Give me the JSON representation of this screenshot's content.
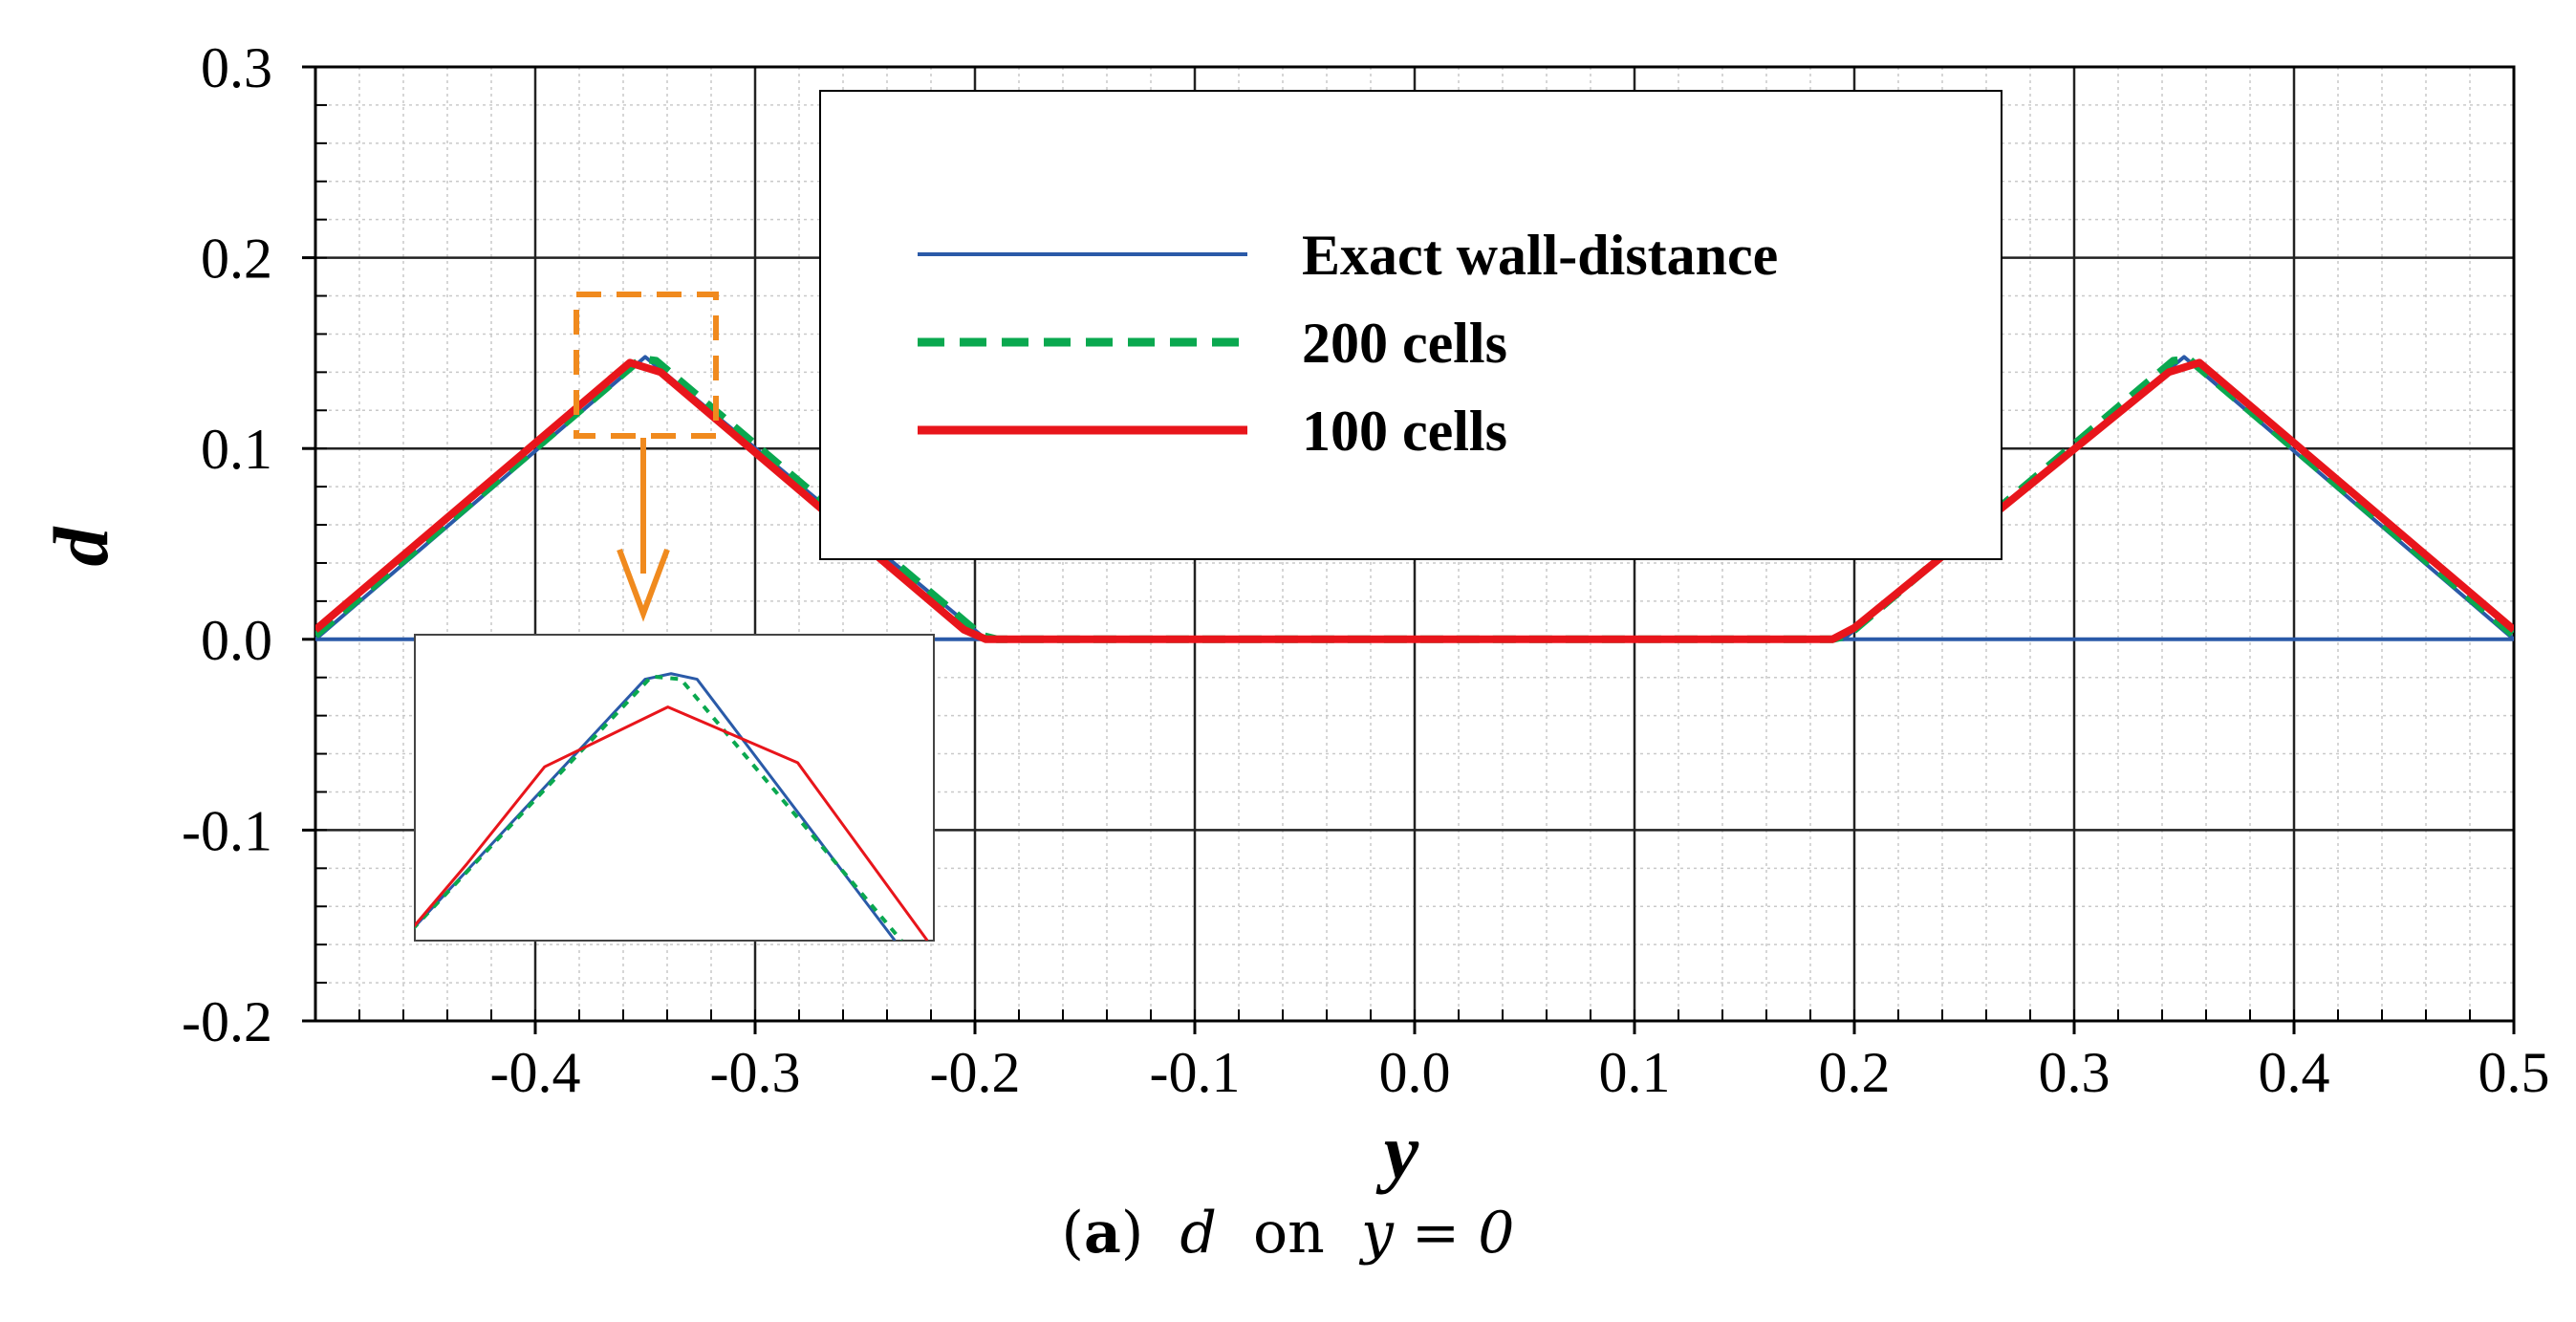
{
  "chart_data": {
    "type": "line",
    "xlabel": "y",
    "ylabel": "d",
    "xlim": [
      -0.5,
      0.5
    ],
    "ylim": [
      -0.2,
      0.3
    ],
    "xticks": [
      -0.4,
      -0.3,
      -0.2,
      -0.1,
      0.0,
      0.1,
      0.2,
      0.3,
      0.4,
      0.5
    ],
    "xtick_labels": [
      "-0.4",
      "-0.3",
      "-0.2",
      "-0.1",
      "0.0",
      "0.1",
      "0.2",
      "0.3",
      "0.4",
      "0.5"
    ],
    "yticks": [
      -0.2,
      -0.1,
      0.0,
      0.1,
      0.2,
      0.3
    ],
    "ytick_labels": [
      "-0.2",
      "-0.1",
      "0.0",
      "0.1",
      "0.2",
      "0.3"
    ],
    "grid": "major and minor",
    "legend_position": "top-center",
    "series": [
      {
        "name": "Exact wall-distance",
        "color": "#2a5aa8",
        "style": "solid-thin",
        "points": [
          [
            -0.5,
            0.0
          ],
          [
            -0.35,
            0.148
          ],
          [
            -0.195,
            0.0
          ],
          [
            0.195,
            0.0
          ],
          [
            0.35,
            0.148
          ],
          [
            0.5,
            0.0
          ]
        ],
        "baseline_points": [
          [
            -0.5,
            0.0
          ],
          [
            0.5,
            0.0
          ]
        ]
      },
      {
        "name": "200 cells",
        "color": "#0aa84f",
        "style": "dashed",
        "points": [
          [
            -0.5,
            0.002
          ],
          [
            -0.352,
            0.147
          ],
          [
            -0.345,
            0.146
          ],
          [
            -0.197,
            0.002
          ],
          [
            -0.19,
            0.0
          ],
          [
            0.19,
            0.0
          ],
          [
            0.197,
            0.002
          ],
          [
            0.345,
            0.146
          ],
          [
            0.352,
            0.147
          ],
          [
            0.5,
            0.002
          ]
        ]
      },
      {
        "name": "100 cells",
        "color": "#e8151b",
        "style": "solid-thick",
        "points": [
          [
            -0.5,
            0.005
          ],
          [
            -0.357,
            0.145
          ],
          [
            -0.343,
            0.14
          ],
          [
            -0.205,
            0.005
          ],
          [
            -0.195,
            0.0
          ],
          [
            0.19,
            0.0
          ],
          [
            0.2,
            0.006
          ],
          [
            0.343,
            0.14
          ],
          [
            0.357,
            0.145
          ],
          [
            0.5,
            0.005
          ]
        ]
      }
    ],
    "inset": {
      "description": "zoom of peak near y = -0.35",
      "xlim": [
        -0.39,
        -0.31
      ],
      "ylim": [
        0.13,
        0.152
      ],
      "highlight_color": "#f08a1e"
    }
  },
  "caption": {
    "label": "(a)",
    "label_letter": "a",
    "text_var": "d",
    "text_on": "on",
    "text_eq": "y = 0"
  }
}
